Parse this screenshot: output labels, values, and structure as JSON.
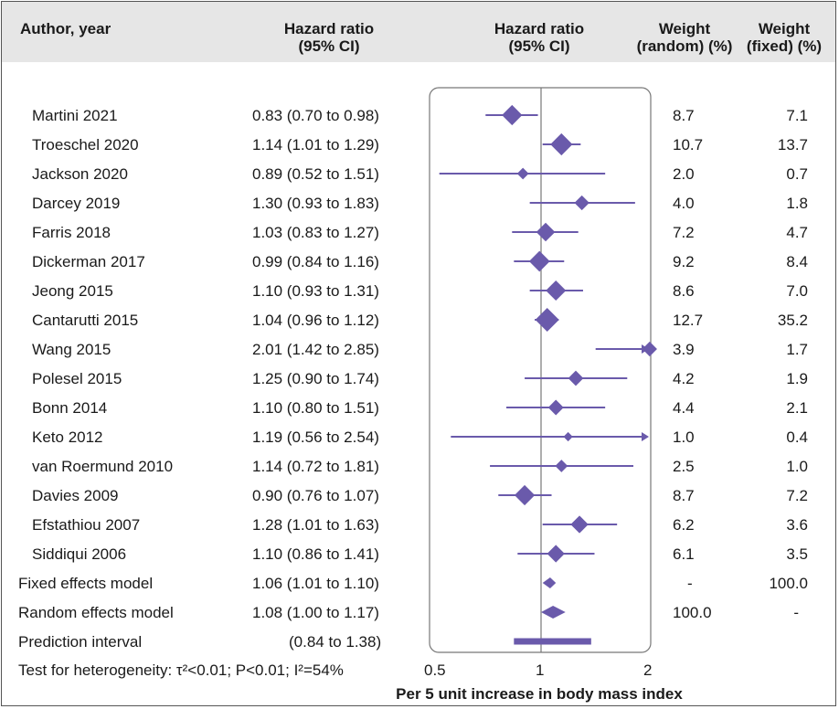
{
  "header": {
    "col_author": "Author, year",
    "col_hr_line1": "Hazard ratio",
    "col_hr_line2": "(95% CI)",
    "col_plot_line1": "Hazard ratio",
    "col_plot_line2": "(95% CI)",
    "col_wr_line1": "Weight",
    "col_wr_line2": "(random) (%)",
    "col_wf_line1": "Weight",
    "col_wf_line2": "(fixed) (%)"
  },
  "studies": [
    {
      "author": "Martini 2021",
      "hr_text": "0.83 (0.70 to 0.98)",
      "w_random": "8.7",
      "w_fixed": "7.1"
    },
    {
      "author": "Troeschel 2020",
      "hr_text": "1.14 (1.01 to 1.29)",
      "w_random": "10.7",
      "w_fixed": "13.7"
    },
    {
      "author": "Jackson 2020",
      "hr_text": "0.89 (0.52 to 1.51)",
      "w_random": "2.0",
      "w_fixed": "0.7"
    },
    {
      "author": "Darcey 2019",
      "hr_text": "1.30 (0.93 to 1.83)",
      "w_random": "4.0",
      "w_fixed": "1.8"
    },
    {
      "author": "Farris 2018",
      "hr_text": "1.03 (0.83 to 1.27)",
      "w_random": "7.2",
      "w_fixed": "4.7"
    },
    {
      "author": "Dickerman 2017",
      "hr_text": "0.99 (0.84 to 1.16)",
      "w_random": "9.2",
      "w_fixed": "8.4"
    },
    {
      "author": "Jeong 2015",
      "hr_text": "1.10 (0.93 to 1.31)",
      "w_random": "8.6",
      "w_fixed": "7.0"
    },
    {
      "author": "Cantarutti 2015",
      "hr_text": "1.04 (0.96 to 1.12)",
      "w_random": "12.7",
      "w_fixed": "35.2"
    },
    {
      "author": "Wang 2015",
      "hr_text": "2.01 (1.42 to 2.85)",
      "w_random": "3.9",
      "w_fixed": "1.7"
    },
    {
      "author": "Polesel 2015",
      "hr_text": "1.25 (0.90 to 1.74)",
      "w_random": "4.2",
      "w_fixed": "1.9"
    },
    {
      "author": "Bonn 2014",
      "hr_text": "1.10 (0.80 to 1.51)",
      "w_random": "4.4",
      "w_fixed": "2.1"
    },
    {
      "author": "Keto 2012",
      "hr_text": "1.19 (0.56 to 2.54)",
      "w_random": "1.0",
      "w_fixed": "0.4"
    },
    {
      "author": "van Roermund 2010",
      "hr_text": "1.14 (0.72 to 1.81)",
      "w_random": "2.5",
      "w_fixed": "1.0"
    },
    {
      "author": "Davies 2009",
      "hr_text": "0.90 (0.76 to 1.07)",
      "w_random": "8.7",
      "w_fixed": "7.2"
    },
    {
      "author": "Efstathiou 2007",
      "hr_text": "1.28 (1.01 to 1.63)",
      "w_random": "6.2",
      "w_fixed": "3.6"
    },
    {
      "author": "Siddiqui 2006",
      "hr_text": "1.10 (0.86 to 1.41)",
      "w_random": "6.1",
      "w_fixed": "3.5"
    }
  ],
  "summaries": [
    {
      "label": "Fixed effects model",
      "hr_text": "1.06 (1.01 to 1.10)",
      "w_random": "-",
      "w_fixed": "100.0"
    },
    {
      "label": "Random effects model",
      "hr_text": "1.08 (1.00 to 1.17)",
      "w_random": "100.0",
      "w_fixed": "-"
    },
    {
      "label": "Prediction interval",
      "hr_text": "(0.84 to 1.38)",
      "w_random": "",
      "w_fixed": ""
    }
  ],
  "heterogeneity": "Test for heterogeneity: τ²<0.01; P<0.01; I²=54%",
  "axis_title": "Per 5 unit increase in body mass index",
  "chart_data": {
    "type": "forest",
    "scale": "log",
    "xlim": [
      0.5,
      2
    ],
    "xticks": [
      0.5,
      1,
      2
    ],
    "xtick_labels": [
      "0.5",
      "1",
      "2"
    ],
    "xlabel": "Per 5 unit increase in body mass index",
    "reference_line": 1,
    "color": "#6a5aab",
    "studies": [
      {
        "label": "Martini 2021",
        "hr": 0.83,
        "lo": 0.7,
        "hi": 0.98,
        "weight": 8.7
      },
      {
        "label": "Troeschel 2020",
        "hr": 1.14,
        "lo": 1.01,
        "hi": 1.29,
        "weight": 10.7
      },
      {
        "label": "Jackson 2020",
        "hr": 0.89,
        "lo": 0.52,
        "hi": 1.51,
        "weight": 2.0
      },
      {
        "label": "Darcey 2019",
        "hr": 1.3,
        "lo": 0.93,
        "hi": 1.83,
        "weight": 4.0
      },
      {
        "label": "Farris 2018",
        "hr": 1.03,
        "lo": 0.83,
        "hi": 1.27,
        "weight": 7.2
      },
      {
        "label": "Dickerman 2017",
        "hr": 0.99,
        "lo": 0.84,
        "hi": 1.16,
        "weight": 9.2
      },
      {
        "label": "Jeong 2015",
        "hr": 1.1,
        "lo": 0.93,
        "hi": 1.31,
        "weight": 8.6
      },
      {
        "label": "Cantarutti 2015",
        "hr": 1.04,
        "lo": 0.96,
        "hi": 1.12,
        "weight": 12.7
      },
      {
        "label": "Wang 2015",
        "hr": 2.01,
        "lo": 1.42,
        "hi": 2.85,
        "weight": 3.9
      },
      {
        "label": "Polesel 2015",
        "hr": 1.25,
        "lo": 0.9,
        "hi": 1.74,
        "weight": 4.2
      },
      {
        "label": "Bonn 2014",
        "hr": 1.1,
        "lo": 0.8,
        "hi": 1.51,
        "weight": 4.4
      },
      {
        "label": "Keto 2012",
        "hr": 1.19,
        "lo": 0.56,
        "hi": 2.54,
        "weight": 1.0
      },
      {
        "label": "van Roermund 2010",
        "hr": 1.14,
        "lo": 0.72,
        "hi": 1.81,
        "weight": 2.5
      },
      {
        "label": "Davies 2009",
        "hr": 0.9,
        "lo": 0.76,
        "hi": 1.07,
        "weight": 8.7
      },
      {
        "label": "Efstathiou 2007",
        "hr": 1.28,
        "lo": 1.01,
        "hi": 1.63,
        "weight": 6.2
      },
      {
        "label": "Siddiqui 2006",
        "hr": 1.1,
        "lo": 0.86,
        "hi": 1.41,
        "weight": 6.1
      }
    ],
    "fixed": {
      "hr": 1.06,
      "lo": 1.01,
      "hi": 1.1
    },
    "random": {
      "hr": 1.08,
      "lo": 1.0,
      "hi": 1.17
    },
    "prediction_interval": {
      "lo": 0.84,
      "hi": 1.38
    }
  }
}
